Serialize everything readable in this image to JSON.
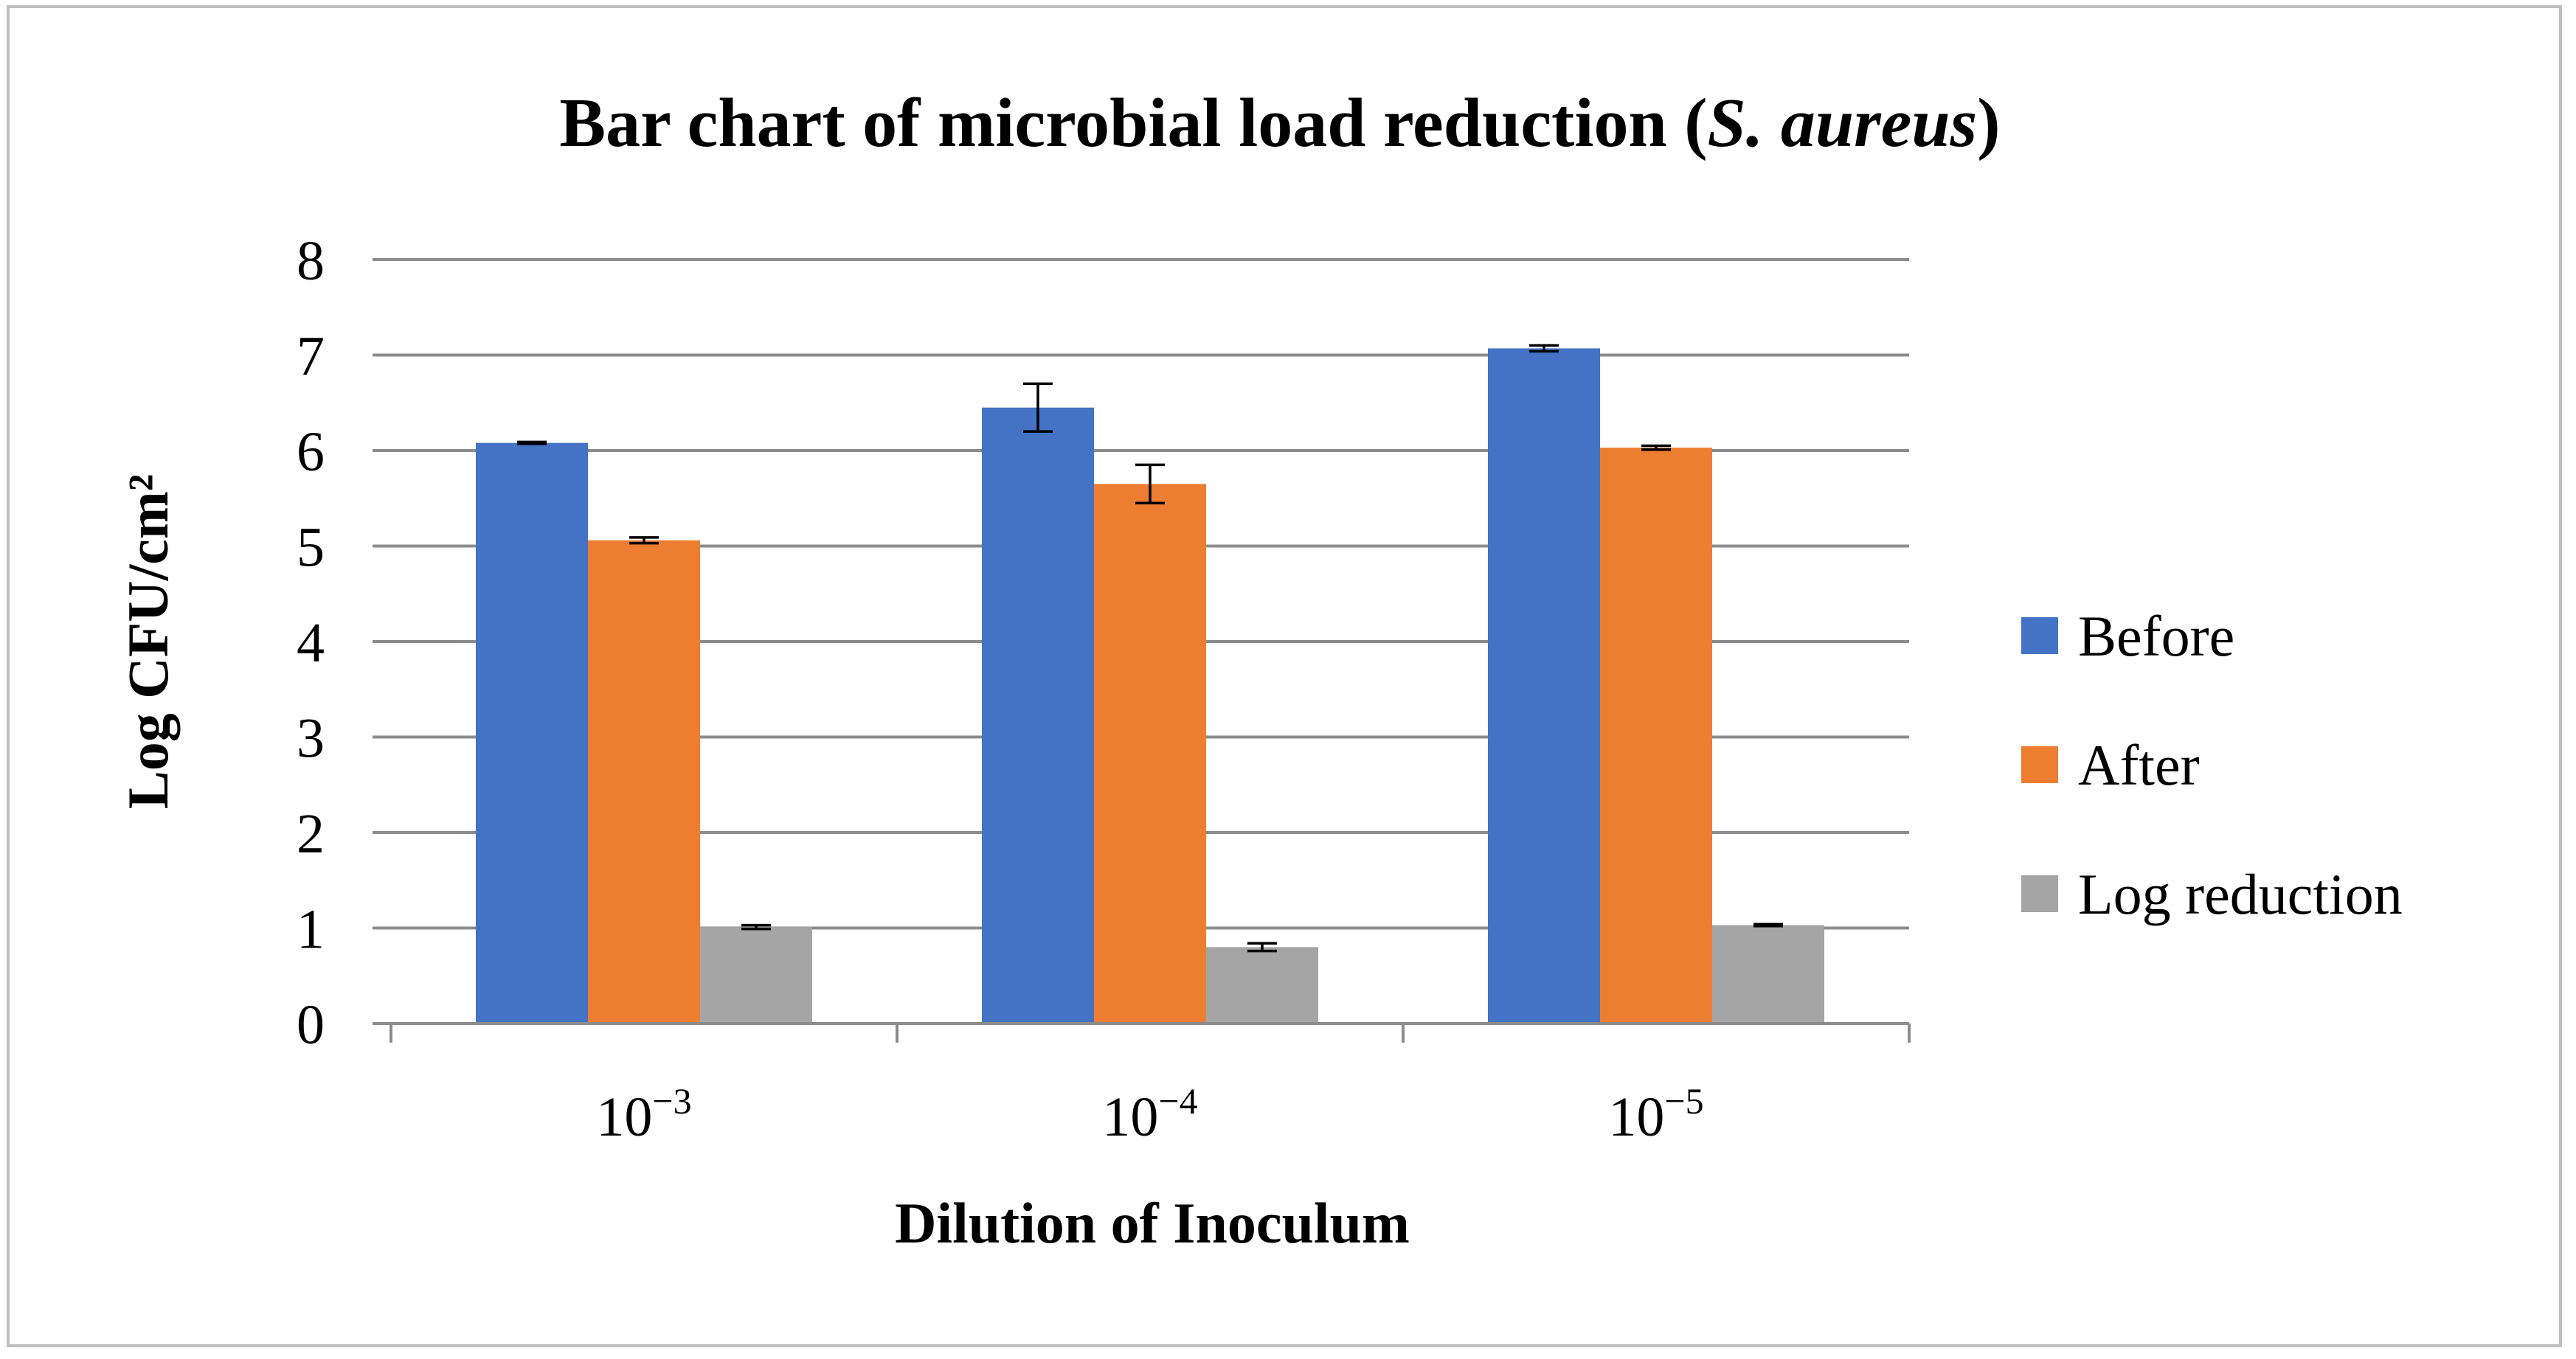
{
  "chart_data": {
    "type": "bar",
    "title_main": "Bar chart of microbial load reduction (",
    "title_italic": "S. aureus",
    "title_end": ")",
    "xlabel": "Dilution of Inoculum",
    "ylabel": "Log CFU/cm²",
    "categories": [
      {
        "base": "10",
        "exp": "−3"
      },
      {
        "base": "10",
        "exp": "−4"
      },
      {
        "base": "10",
        "exp": "−5"
      }
    ],
    "ylim": [
      0,
      8
    ],
    "yticks": [
      "0",
      "1",
      "2",
      "3",
      "4",
      "5",
      "6",
      "7",
      "8"
    ],
    "grid": true,
    "legend_position": "right",
    "series": [
      {
        "name": "Before",
        "color": "#4472C4",
        "values": [
          6.08,
          6.45,
          7.07
        ],
        "errors": [
          0.01,
          0.25,
          0.03
        ]
      },
      {
        "name": "After",
        "color": "#ED7D31",
        "values": [
          5.06,
          5.65,
          6.03
        ],
        "errors": [
          0.03,
          0.2,
          0.02
        ]
      },
      {
        "name": "Log reduction",
        "color": "#A5A5A5",
        "values": [
          1.01,
          0.8,
          1.03
        ],
        "errors": [
          0.02,
          0.04,
          0.01
        ]
      }
    ]
  }
}
